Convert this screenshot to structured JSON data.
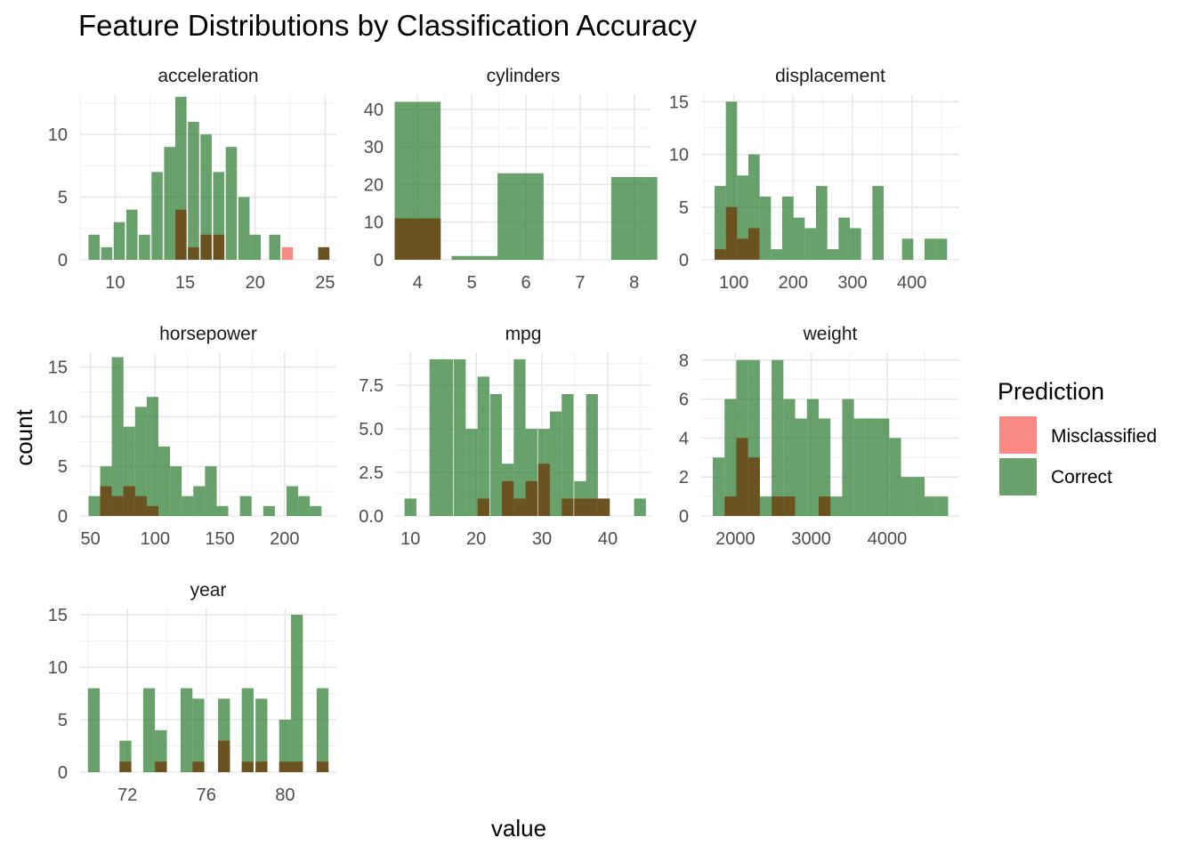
{
  "chart_data": {
    "type": "bar",
    "title": "Feature Distributions by Classification Accuracy",
    "xlabel": "value",
    "ylabel": "count",
    "grid": true,
    "legend": {
      "title": "Prediction",
      "placement": "right",
      "entries": [
        {
          "name": "Misclassified",
          "color": "#F8766D"
        },
        {
          "name": "Correct",
          "color": "#2E7D32"
        }
      ]
    },
    "colors": {
      "Misclassified": "#F8766D",
      "Correct": "#2E7D32",
      "overlap": "#6B4E1E"
    },
    "panels": [
      {
        "name": "acceleration",
        "xlim": [
          7.5,
          25.8
        ],
        "ylim": [
          0,
          13.2
        ],
        "xticks": [
          10,
          15,
          20,
          25
        ],
        "yticks": [
          0,
          5,
          10
        ],
        "bins": [
          {
            "x": 8.5,
            "correct": 2,
            "mis": 0
          },
          {
            "x": 9.4,
            "correct": 1,
            "mis": 0
          },
          {
            "x": 10.3,
            "correct": 3,
            "mis": 0
          },
          {
            "x": 11.2,
            "correct": 4,
            "mis": 0
          },
          {
            "x": 12.1,
            "correct": 2,
            "mis": 0
          },
          {
            "x": 13.0,
            "correct": 7,
            "mis": 0
          },
          {
            "x": 13.9,
            "correct": 9,
            "mis": 0
          },
          {
            "x": 14.7,
            "correct": 13,
            "mis": 4
          },
          {
            "x": 15.6,
            "correct": 11,
            "mis": 1
          },
          {
            "x": 16.5,
            "correct": 10,
            "mis": 2
          },
          {
            "x": 17.4,
            "correct": 7,
            "mis": 2
          },
          {
            "x": 18.3,
            "correct": 9,
            "mis": 0
          },
          {
            "x": 19.2,
            "correct": 5,
            "mis": 0
          },
          {
            "x": 20.0,
            "correct": 2,
            "mis": 0
          },
          {
            "x": 21.4,
            "correct": 2,
            "mis": 0
          },
          {
            "x": 22.3,
            "correct": 0,
            "mis": 1
          },
          {
            "x": 24.9,
            "correct": 1,
            "mis": 1
          }
        ]
      },
      {
        "name": "cylinders",
        "xlim": [
          3.6,
          8.3
        ],
        "ylim": [
          0,
          44
        ],
        "xticks": [
          4,
          5,
          6,
          7,
          8
        ],
        "yticks": [
          0,
          10,
          20,
          30,
          40
        ],
        "bins": [
          {
            "x": 4.0,
            "correct": 42,
            "mis": 11
          },
          {
            "x": 5.05,
            "correct": 1,
            "mis": 0
          },
          {
            "x": 5.9,
            "correct": 23,
            "mis": 0
          },
          {
            "x": 8.0,
            "correct": 22,
            "mis": 0
          }
        ]
      },
      {
        "name": "displacement",
        "xlim": [
          45,
          480
        ],
        "ylim": [
          0,
          15.7
        ],
        "xticks": [
          100,
          200,
          300,
          400
        ],
        "yticks": [
          0,
          5,
          10,
          15
        ],
        "bins": [
          {
            "x": 77,
            "correct": 7,
            "mis": 1
          },
          {
            "x": 96,
            "correct": 15,
            "mis": 5
          },
          {
            "x": 115,
            "correct": 8,
            "mis": 2
          },
          {
            "x": 134,
            "correct": 10,
            "mis": 3
          },
          {
            "x": 153,
            "correct": 6,
            "mis": 0
          },
          {
            "x": 172,
            "correct": 1,
            "mis": 0
          },
          {
            "x": 191,
            "correct": 6,
            "mis": 0
          },
          {
            "x": 210,
            "correct": 4,
            "mis": 0
          },
          {
            "x": 229,
            "correct": 3,
            "mis": 0
          },
          {
            "x": 248,
            "correct": 7,
            "mis": 0
          },
          {
            "x": 267,
            "correct": 1,
            "mis": 0
          },
          {
            "x": 286,
            "correct": 4,
            "mis": 0
          },
          {
            "x": 305,
            "correct": 3,
            "mis": 0
          },
          {
            "x": 343,
            "correct": 7,
            "mis": 0
          },
          {
            "x": 393,
            "correct": 2,
            "mis": 0
          },
          {
            "x": 431,
            "correct": 2,
            "mis": 0
          },
          {
            "x": 450,
            "correct": 2,
            "mis": 0
          }
        ]
      },
      {
        "name": "horsepower",
        "xlim": [
          42,
          240
        ],
        "ylim": [
          0,
          16.5
        ],
        "xticks": [
          50,
          100,
          150,
          200
        ],
        "yticks": [
          0,
          5,
          10,
          15
        ],
        "bins": [
          {
            "x": 53,
            "correct": 2,
            "mis": 0
          },
          {
            "x": 62,
            "correct": 5,
            "mis": 3
          },
          {
            "x": 71,
            "correct": 16,
            "mis": 2
          },
          {
            "x": 80,
            "correct": 9,
            "mis": 3
          },
          {
            "x": 89,
            "correct": 11,
            "mis": 2
          },
          {
            "x": 98,
            "correct": 12,
            "mis": 1
          },
          {
            "x": 107,
            "correct": 7,
            "mis": 0
          },
          {
            "x": 116,
            "correct": 5,
            "mis": 0
          },
          {
            "x": 125,
            "correct": 2,
            "mis": 0
          },
          {
            "x": 134,
            "correct": 3,
            "mis": 0
          },
          {
            "x": 143,
            "correct": 5,
            "mis": 0
          },
          {
            "x": 152,
            "correct": 1,
            "mis": 0
          },
          {
            "x": 170,
            "correct": 2,
            "mis": 0
          },
          {
            "x": 188,
            "correct": 1,
            "mis": 0
          },
          {
            "x": 206,
            "correct": 3,
            "mis": 0
          },
          {
            "x": 215,
            "correct": 2,
            "mis": 0
          },
          {
            "x": 224,
            "correct": 1,
            "mis": 0
          }
        ]
      },
      {
        "name": "mpg",
        "xlim": [
          7.8,
          46.5
        ],
        "ylim": [
          0,
          9.4
        ],
        "xticks": [
          10,
          20,
          30,
          40
        ],
        "yticks": [
          0.0,
          2.5,
          5.0,
          7.5
        ],
        "ytick_labels": [
          "0.0",
          "2.5",
          "5.0",
          "7.5"
        ],
        "bins": [
          {
            "x": 10.0,
            "correct": 1,
            "mis": 0
          },
          {
            "x": 13.8,
            "correct": 9,
            "mis": 0
          },
          {
            "x": 15.6,
            "correct": 9,
            "mis": 0
          },
          {
            "x": 17.5,
            "correct": 9,
            "mis": 0
          },
          {
            "x": 19.3,
            "correct": 5,
            "mis": 0
          },
          {
            "x": 21.1,
            "correct": 8,
            "mis": 1
          },
          {
            "x": 23.0,
            "correct": 7,
            "mis": 0
          },
          {
            "x": 24.8,
            "correct": 3,
            "mis": 2
          },
          {
            "x": 26.6,
            "correct": 9,
            "mis": 1
          },
          {
            "x": 28.4,
            "correct": 5,
            "mis": 2
          },
          {
            "x": 30.3,
            "correct": 5,
            "mis": 3
          },
          {
            "x": 32.1,
            "correct": 6,
            "mis": 0
          },
          {
            "x": 33.9,
            "correct": 7,
            "mis": 1
          },
          {
            "x": 35.8,
            "correct": 2,
            "mis": 1
          },
          {
            "x": 37.6,
            "correct": 7,
            "mis": 1
          },
          {
            "x": 39.4,
            "correct": 1,
            "mis": 1
          },
          {
            "x": 44.9,
            "correct": 1,
            "mis": 0
          }
        ]
      },
      {
        "name": "weight",
        "xlim": [
          1550,
          4950
        ],
        "ylim": [
          0,
          8.4
        ],
        "xticks": [
          2000,
          3000,
          4000
        ],
        "yticks": [
          0,
          2,
          4,
          6,
          8
        ],
        "bins": [
          {
            "x": 1780,
            "correct": 3,
            "mis": 0
          },
          {
            "x": 1935,
            "correct": 6,
            "mis": 1
          },
          {
            "x": 2090,
            "correct": 8,
            "mis": 4
          },
          {
            "x": 2245,
            "correct": 8,
            "mis": 3
          },
          {
            "x": 2400,
            "correct": 1,
            "mis": 0
          },
          {
            "x": 2555,
            "correct": 8,
            "mis": 1
          },
          {
            "x": 2710,
            "correct": 6,
            "mis": 1
          },
          {
            "x": 2865,
            "correct": 5,
            "mis": 0
          },
          {
            "x": 3020,
            "correct": 6,
            "mis": 0
          },
          {
            "x": 3175,
            "correct": 5,
            "mis": 1
          },
          {
            "x": 3330,
            "correct": 1,
            "mis": 0
          },
          {
            "x": 3485,
            "correct": 6,
            "mis": 0
          },
          {
            "x": 3640,
            "correct": 5,
            "mis": 0
          },
          {
            "x": 3795,
            "correct": 5,
            "mis": 0
          },
          {
            "x": 3950,
            "correct": 5,
            "mis": 0
          },
          {
            "x": 4105,
            "correct": 4,
            "mis": 0
          },
          {
            "x": 4260,
            "correct": 2,
            "mis": 0
          },
          {
            "x": 4415,
            "correct": 2,
            "mis": 0
          },
          {
            "x": 4570,
            "correct": 1,
            "mis": 0
          },
          {
            "x": 4725,
            "correct": 1,
            "mis": 0
          }
        ]
      },
      {
        "name": "year",
        "xlim": [
          69.6,
          82.6
        ],
        "ylim": [
          0,
          15.6
        ],
        "xticks": [
          72,
          76,
          80
        ],
        "yticks": [
          0,
          5,
          10,
          15
        ],
        "bins": [
          {
            "x": 70.3,
            "correct": 8,
            "mis": 0
          },
          {
            "x": 71.9,
            "correct": 3,
            "mis": 1
          },
          {
            "x": 73.1,
            "correct": 8,
            "mis": 0
          },
          {
            "x": 73.7,
            "correct": 4,
            "mis": 1
          },
          {
            "x": 75.0,
            "correct": 8,
            "mis": 0
          },
          {
            "x": 75.6,
            "correct": 7,
            "mis": 1
          },
          {
            "x": 76.9,
            "correct": 7,
            "mis": 3
          },
          {
            "x": 78.1,
            "correct": 8,
            "mis": 1
          },
          {
            "x": 78.8,
            "correct": 7,
            "mis": 1
          },
          {
            "x": 80.0,
            "correct": 5,
            "mis": 1
          },
          {
            "x": 80.6,
            "correct": 15,
            "mis": 1
          },
          {
            "x": 81.9,
            "correct": 8,
            "mis": 1
          }
        ]
      }
    ]
  }
}
